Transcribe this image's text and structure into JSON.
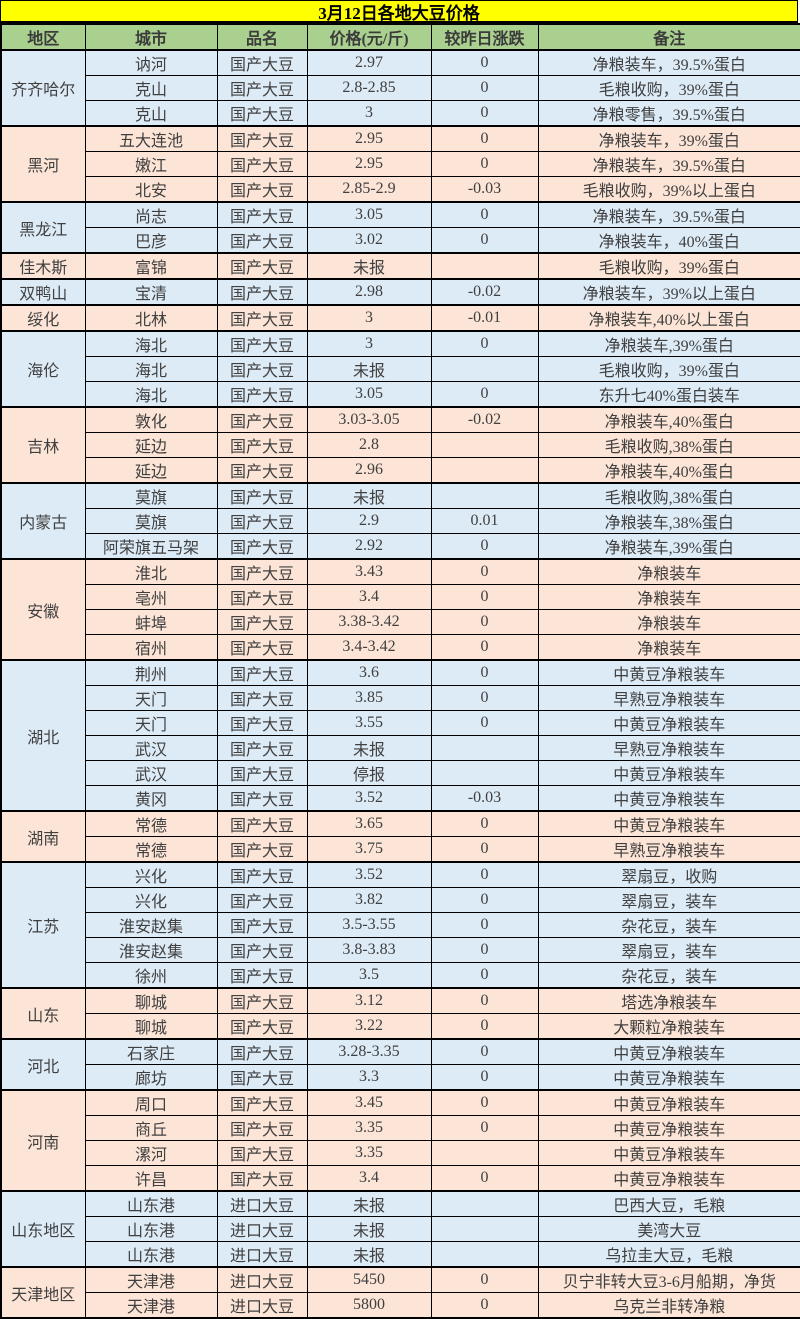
{
  "title": "3月12日各地大豆价格",
  "columns": [
    "地区",
    "城市",
    "品名",
    "价格(元/斤)",
    "较昨日涨跌",
    "备注"
  ],
  "colors": {
    "title_bg": "#FFFF00",
    "header_bg": "#A9D08E",
    "tint_blue": "#DDEBF7",
    "tint_pink": "#FCE4D6",
    "border": "#000000",
    "text": "#404040"
  },
  "groups": [
    {
      "region": "齐齐哈尔",
      "tint": "blue",
      "rows": [
        {
          "city": "讷河",
          "product": "国产大豆",
          "price": "2.97",
          "change": "0",
          "note": "净粮装车，39.5%蛋白"
        },
        {
          "city": "克山",
          "product": "国产大豆",
          "price": "2.8-2.85",
          "change": "0",
          "note": "毛粮收购，39%蛋白"
        },
        {
          "city": "克山",
          "product": "国产大豆",
          "price": "3",
          "change": "0",
          "note": "净粮零售，39.5%蛋白"
        }
      ]
    },
    {
      "region": "黑河",
      "tint": "pink",
      "rows": [
        {
          "city": "五大连池",
          "product": "国产大豆",
          "price": "2.95",
          "change": "0",
          "note": "净粮装车，39%蛋白"
        },
        {
          "city": "嫩江",
          "product": "国产大豆",
          "price": "2.95",
          "change": "0",
          "note": "净粮装车，39.5%蛋白"
        },
        {
          "city": "北安",
          "product": "国产大豆",
          "price": "2.85-2.9",
          "change": "-0.03",
          "note": "毛粮收购，39%以上蛋白"
        }
      ]
    },
    {
      "region": "黑龙江",
      "tint": "blue",
      "rows": [
        {
          "city": "尚志",
          "product": "国产大豆",
          "price": "3.05",
          "change": "0",
          "note": "净粮装车，39.5%蛋白"
        },
        {
          "city": "巴彦",
          "product": "国产大豆",
          "price": "3.02",
          "change": "0",
          "note": "净粮装车，40%蛋白"
        }
      ]
    },
    {
      "region": "佳木斯",
      "tint": "pink",
      "rows": [
        {
          "city": "富锦",
          "product": "国产大豆",
          "price": "未报",
          "change": "",
          "note": "毛粮收购，39%蛋白"
        }
      ]
    },
    {
      "region": "双鸭山",
      "tint": "blue",
      "rows": [
        {
          "city": "宝清",
          "product": "国产大豆",
          "price": "2.98",
          "change": "-0.02",
          "note": "净粮装车，39%以上蛋白"
        }
      ]
    },
    {
      "region": "绥化",
      "tint": "pink",
      "rows": [
        {
          "city": "北林",
          "product": "国产大豆",
          "price": "3",
          "change": "-0.01",
          "note": "净粮装车,40%以上蛋白"
        }
      ]
    },
    {
      "region": "海伦",
      "tint": "blue",
      "rows": [
        {
          "city": "海北",
          "product": "国产大豆",
          "price": "3",
          "change": "0",
          "note": "净粮装车,39%蛋白"
        },
        {
          "city": "海北",
          "product": "国产大豆",
          "price": "未报",
          "change": "",
          "note": "毛粮收购，39%蛋白"
        },
        {
          "city": "海北",
          "product": "国产大豆",
          "price": "3.05",
          "change": "0",
          "note": "东升七40%蛋白装车"
        }
      ]
    },
    {
      "region": "吉林",
      "tint": "pink",
      "rows": [
        {
          "city": "敦化",
          "product": "国产大豆",
          "price": "3.03-3.05",
          "change": "-0.02",
          "note": "净粮装车,40%蛋白"
        },
        {
          "city": "延边",
          "product": "国产大豆",
          "price": "2.8",
          "change": "",
          "note": "毛粮收购,38%蛋白"
        },
        {
          "city": "延边",
          "product": "国产大豆",
          "price": "2.96",
          "change": "",
          "note": "净粮装车,40%蛋白"
        }
      ]
    },
    {
      "region": "内蒙古",
      "tint": "blue",
      "rows": [
        {
          "city": "莫旗",
          "product": "国产大豆",
          "price": "未报",
          "change": "",
          "note": "毛粮收购,38%蛋白"
        },
        {
          "city": "莫旗",
          "product": "国产大豆",
          "price": "2.9",
          "change": "0.01",
          "note": "净粮装车,38%蛋白"
        },
        {
          "city": "阿荣旗五马架",
          "product": "国产大豆",
          "price": "2.92",
          "change": "0",
          "note": "净粮装车,39%蛋白"
        }
      ]
    },
    {
      "region": "安徽",
      "tint": "pink",
      "rows": [
        {
          "city": "淮北",
          "product": "国产大豆",
          "price": "3.43",
          "change": "0",
          "note": "净粮装车"
        },
        {
          "city": "亳州",
          "product": "国产大豆",
          "price": "3.4",
          "change": "0",
          "note": "净粮装车"
        },
        {
          "city": "蚌埠",
          "product": "国产大豆",
          "price": "3.38-3.42",
          "change": "0",
          "note": "净粮装车"
        },
        {
          "city": "宿州",
          "product": "国产大豆",
          "price": "3.4-3.42",
          "change": "0",
          "note": "净粮装车"
        }
      ]
    },
    {
      "region": "湖北",
      "tint": "blue",
      "rows": [
        {
          "city": "荆州",
          "product": "国产大豆",
          "price": "3.6",
          "change": "0",
          "note": "中黄豆净粮装车"
        },
        {
          "city": "天门",
          "product": "国产大豆",
          "price": "3.85",
          "change": "0",
          "note": "早熟豆净粮装车"
        },
        {
          "city": "天门",
          "product": "国产大豆",
          "price": "3.55",
          "change": "0",
          "note": "中黄豆净粮装车"
        },
        {
          "city": "武汉",
          "product": "国产大豆",
          "price": "未报",
          "change": "",
          "note": "早熟豆净粮装车"
        },
        {
          "city": "武汉",
          "product": "国产大豆",
          "price": "停报",
          "change": "",
          "note": "中黄豆净粮装车"
        },
        {
          "city": "黄冈",
          "product": "国产大豆",
          "price": "3.52",
          "change": "-0.03",
          "note": "中黄豆净粮装车"
        }
      ]
    },
    {
      "region": "湖南",
      "tint": "pink",
      "rows": [
        {
          "city": "常德",
          "product": "国产大豆",
          "price": "3.65",
          "change": "0",
          "note": "中黄豆净粮装车"
        },
        {
          "city": "常德",
          "product": "国产大豆",
          "price": "3.75",
          "change": "0",
          "note": "早熟豆净粮装车"
        }
      ]
    },
    {
      "region": "江苏",
      "tint": "blue",
      "rows": [
        {
          "city": "兴化",
          "product": "国产大豆",
          "price": "3.52",
          "change": "0",
          "note": "翠扇豆，收购"
        },
        {
          "city": "兴化",
          "product": "国产大豆",
          "price": "3.82",
          "change": "0",
          "note": "翠扇豆，装车"
        },
        {
          "city": "淮安赵集",
          "product": "国产大豆",
          "price": "3.5-3.55",
          "change": "0",
          "note": "杂花豆，装车"
        },
        {
          "city": "淮安赵集",
          "product": "国产大豆",
          "price": "3.8-3.83",
          "change": "0",
          "note": "翠扇豆，装车"
        },
        {
          "city": "徐州",
          "product": "国产大豆",
          "price": "3.5",
          "change": "0",
          "note": "杂花豆，装车"
        }
      ]
    },
    {
      "region": "山东",
      "tint": "pink",
      "rows": [
        {
          "city": "聊城",
          "product": "国产大豆",
          "price": "3.12",
          "change": "0",
          "note": "塔选净粮装车"
        },
        {
          "city": "聊城",
          "product": "国产大豆",
          "price": "3.22",
          "change": "0",
          "note": "大颗粒净粮装车"
        }
      ]
    },
    {
      "region": "河北",
      "tint": "blue",
      "rows": [
        {
          "city": "石家庄",
          "product": "国产大豆",
          "price": "3.28-3.35",
          "change": "0",
          "note": "中黄豆净粮装车"
        },
        {
          "city": "廊坊",
          "product": "国产大豆",
          "price": "3.3",
          "change": "0",
          "note": "中黄豆净粮装车"
        }
      ]
    },
    {
      "region": "河南",
      "tint": "pink",
      "rows": [
        {
          "city": "周口",
          "product": "国产大豆",
          "price": "3.45",
          "change": "0",
          "note": "中黄豆净粮装车"
        },
        {
          "city": "商丘",
          "product": "国产大豆",
          "price": "3.35",
          "change": "0",
          "note": "中黄豆净粮装车"
        },
        {
          "city": "漯河",
          "product": "国产大豆",
          "price": "3.35",
          "change": "",
          "note": "中黄豆净粮装车"
        },
        {
          "city": "许昌",
          "product": "国产大豆",
          "price": "3.4",
          "change": "0",
          "note": "中黄豆净粮装车"
        }
      ]
    },
    {
      "region": "山东地区",
      "tint": "blue",
      "rows": [
        {
          "city": "山东港",
          "product": "进口大豆",
          "price": "未报",
          "change": "",
          "note": "巴西大豆，毛粮"
        },
        {
          "city": "山东港",
          "product": "进口大豆",
          "price": "未报",
          "change": "",
          "note": "美湾大豆"
        },
        {
          "city": "山东港",
          "product": "进口大豆",
          "price": "未报",
          "change": "",
          "note": "乌拉圭大豆，毛粮"
        }
      ]
    },
    {
      "region": "天津地区",
      "tint": "pink",
      "rows": [
        {
          "city": "天津港",
          "product": "进口大豆",
          "price": "5450",
          "change": "0",
          "note": "贝宁非转大豆3-6月船期，净货"
        },
        {
          "city": "天津港",
          "product": "进口大豆",
          "price": "5800",
          "change": "0",
          "note": "乌克兰非转净粮"
        }
      ]
    }
  ]
}
